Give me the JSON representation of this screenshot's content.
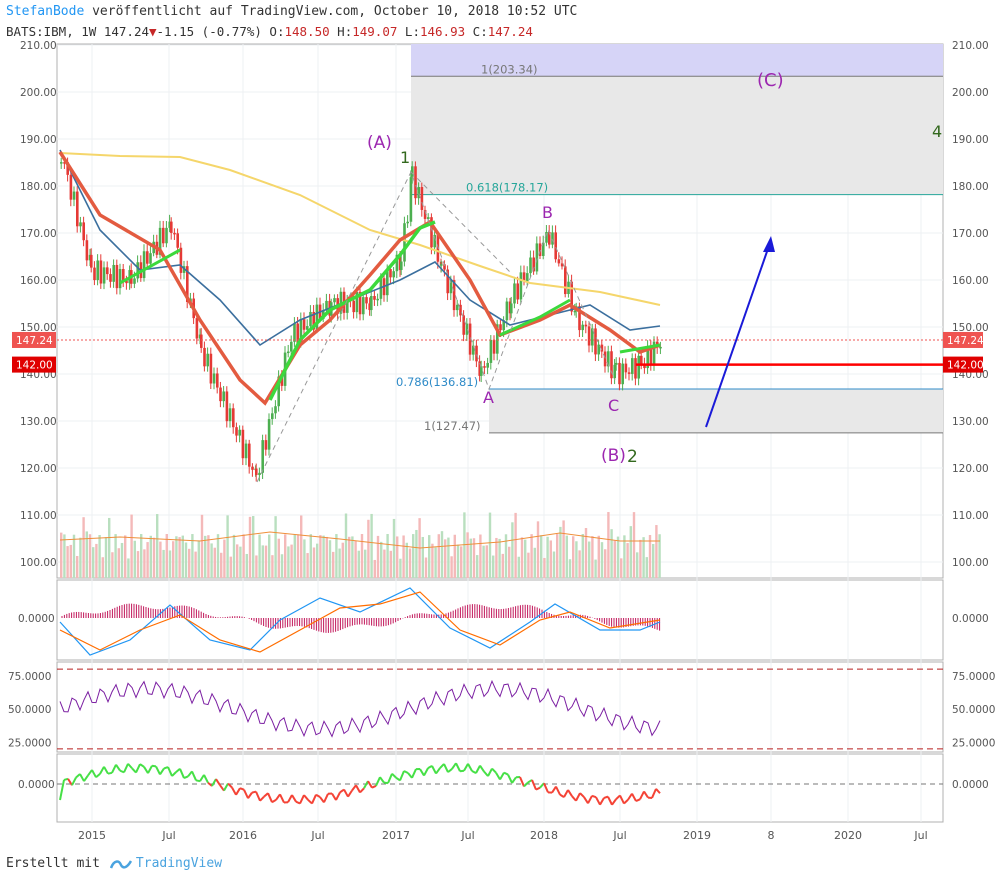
{
  "header": {
    "author": "StefanBode",
    "published": "veröffentlicht auf TradingView.com, October 10, 2018 10:52 UTC",
    "symbol": "BATS:IBM, 1W",
    "last": "147.24",
    "change": "-1.15 (-0.77%)",
    "open_label": "O:",
    "open": "148.50",
    "high_label": "H:",
    "high": "149.07",
    "low_label": "L:",
    "low": "146.93",
    "close_label": "C:",
    "close": "147.24"
  },
  "footer": {
    "text": "Erstellt mit",
    "brand": "TradingView"
  },
  "colors": {
    "up": "#4caf50",
    "down": "#e53935",
    "accent_label": "#9c27b0",
    "wave_green": "#33691e",
    "price_badge": "#ef5350",
    "support_line": "#ff0000",
    "projection_arrow": "#1a1ad8",
    "projection_zone": "#d6d4f7"
  },
  "chart_data": [
    {
      "type": "line",
      "title": "",
      "y_ticks": [
        "210.00",
        "200.00",
        "190.00",
        "180.00",
        "170.00",
        "160.00",
        "150.00",
        "140.00",
        "130.00",
        "120.00",
        "110.00",
        "100.00"
      ],
      "ylim": [
        97,
        212
      ],
      "x_ticks": [
        "2015",
        "Jul",
        "2016",
        "Jul",
        "2017",
        "Jul",
        "2018",
        "Jul",
        "2019",
        "8",
        "2020",
        "Jul"
      ],
      "x": [
        "2014-12",
        "2015-03",
        "2015-06",
        "2015-09",
        "2015-12",
        "2016-02",
        "2016-04",
        "2016-06",
        "2016-09",
        "2016-12",
        "2017-03",
        "2017-05",
        "2017-08",
        "2017-10",
        "2018-01",
        "2018-03",
        "2018-05",
        "2018-07",
        "2018-10"
      ],
      "series": [
        {
          "values": [
            187,
            162,
            160,
            172,
            145,
            118,
            148,
            155,
            155,
            165,
            182,
            163,
            140,
            156,
            170,
            152,
            140,
            142,
            147
          ]
        }
      ],
      "price_labels": {
        "last": "147.24",
        "support": "142.00"
      },
      "support_level": 142,
      "fib_levels": [
        {
          "label": "1(203.34)",
          "value": 203.34
        },
        {
          "label": "0.618(178.17)",
          "value": 178.17
        },
        {
          "label": "0.786(136.81)",
          "value": 136.81
        },
        {
          "label": "1(127.47)",
          "value": 127.47
        }
      ],
      "wave_labels": [
        {
          "text": "(A)",
          "style": "purple"
        },
        {
          "text": "1",
          "style": "green"
        },
        {
          "text": "B",
          "style": "purple"
        },
        {
          "text": "A",
          "style": "purple"
        },
        {
          "text": "C",
          "style": "purple"
        },
        {
          "text": "(B)",
          "style": "purple"
        },
        {
          "text": "2",
          "style": "green"
        },
        {
          "text": "(C)",
          "style": "purple"
        },
        {
          "text": "4",
          "style": "green"
        }
      ]
    },
    {
      "type": "line",
      "title": "",
      "y_ticks": [
        "0.0000"
      ],
      "ylim": [
        -1,
        1
      ]
    },
    {
      "type": "line",
      "title": "",
      "y_ticks": [
        "75.0000",
        "50.0000",
        "25.0000"
      ],
      "ylim": [
        15,
        85
      ],
      "bands": [
        80,
        20
      ]
    },
    {
      "type": "line",
      "title": "",
      "y_ticks": [
        "0.0000"
      ],
      "ylim": [
        -1,
        1
      ]
    }
  ]
}
